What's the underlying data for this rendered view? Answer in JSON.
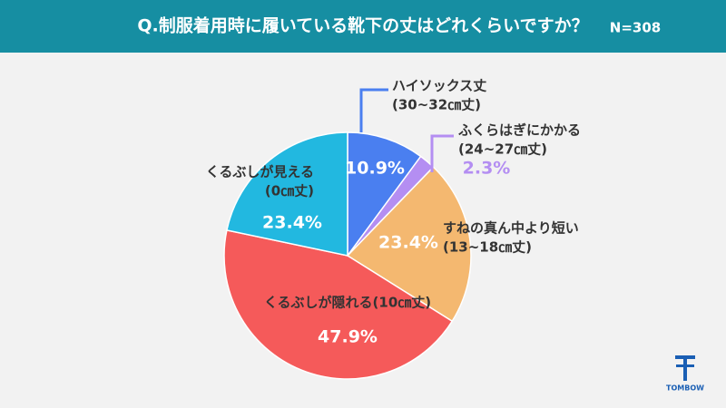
{
  "chart_data": {
    "type": "pie",
    "title": "Q.制服着用時に履いている靴下の丈はどれくらいですか？",
    "subtitle": "N=308",
    "categories": [
      [
        "ハイソックス丈",
        "(30~32㎝丈)"
      ],
      [
        "ふくらはぎにかかる",
        "(24~27㎝丈)"
      ],
      [
        "すねの真ん中より短い",
        "(13~18㎝丈)"
      ],
      [
        "くるぶしが隠れる(10㎝丈)"
      ],
      [
        "くるぶしが見える",
        "(0㎝丈)"
      ]
    ],
    "values": [
      10.9,
      2.3,
      23.4,
      47.9,
      23.4
    ],
    "value_labels": [
      "10.9%",
      "2.3%",
      "23.4%",
      "47.9%",
      "23.4%"
    ],
    "colors": [
      "#4a7ff0",
      "#b48ef2",
      "#f4b870",
      "#f55a5a",
      "#22b8e0"
    ],
    "logo": "TOMBOW"
  }
}
